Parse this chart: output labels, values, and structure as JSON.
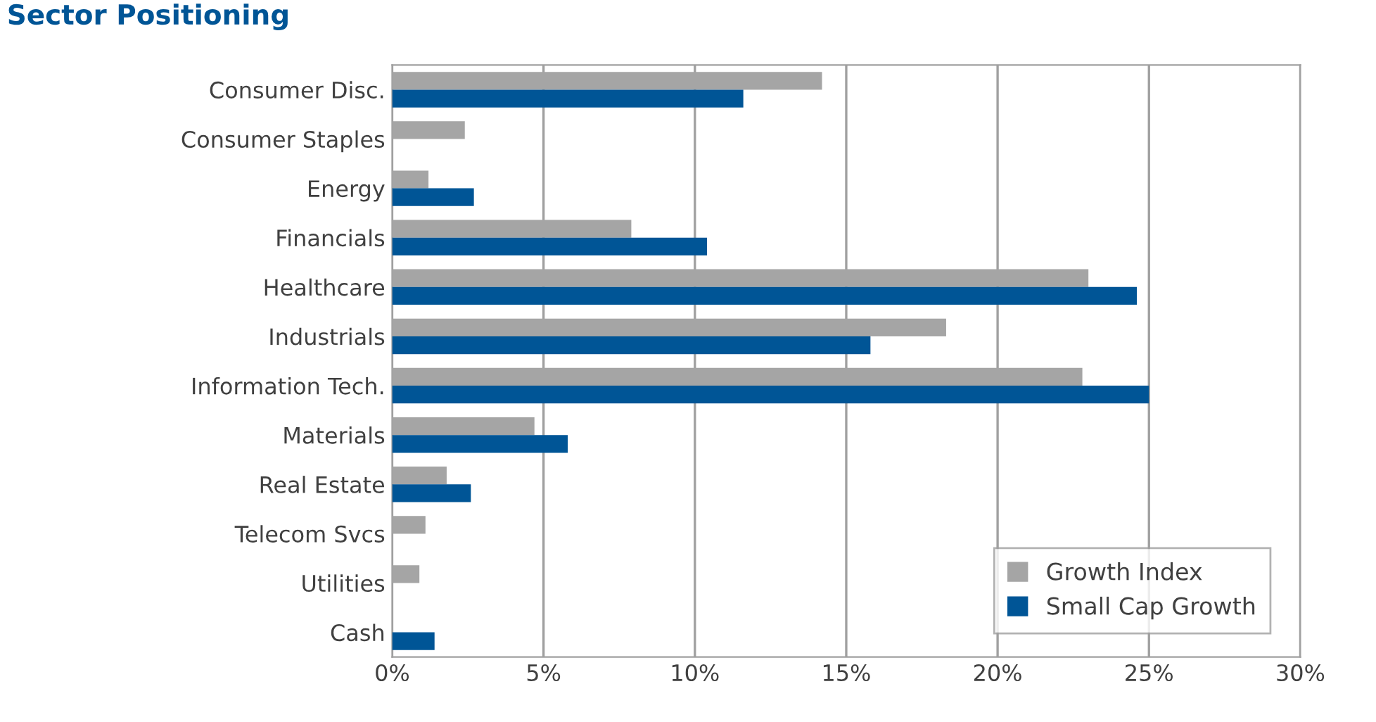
{
  "chart_data": {
    "type": "bar",
    "orientation": "horizontal",
    "title": "Sector Positioning",
    "categories": [
      "Consumer Disc.",
      "Consumer Staples",
      "Energy",
      "Financials",
      "Healthcare",
      "Industrials",
      "Information Tech.",
      "Materials",
      "Real Estate",
      "Telecom Svcs",
      "Utilities",
      "Cash"
    ],
    "series": [
      {
        "name": "Growth Index",
        "color": "#a5a5a5",
        "values": [
          14.2,
          2.4,
          1.2,
          7.9,
          23.0,
          18.3,
          22.8,
          4.7,
          1.8,
          1.1,
          0.9,
          null
        ]
      },
      {
        "name": "Small Cap Growth",
        "color": "#005596",
        "values": [
          11.6,
          null,
          2.7,
          10.4,
          24.6,
          15.8,
          25.0,
          5.8,
          2.6,
          null,
          null,
          1.4
        ]
      }
    ],
    "xlim": [
      0,
      30
    ],
    "xticks": [
      {
        "value": 0,
        "label": "0%"
      },
      {
        "value": 5,
        "label": "5%"
      },
      {
        "value": 10,
        "label": "10%"
      },
      {
        "value": 15,
        "label": "15%"
      },
      {
        "value": 20,
        "label": "20%"
      },
      {
        "value": 25,
        "label": "25%"
      },
      {
        "value": 30,
        "label": "30%"
      }
    ],
    "grid": "x",
    "legend": "bottom right"
  }
}
